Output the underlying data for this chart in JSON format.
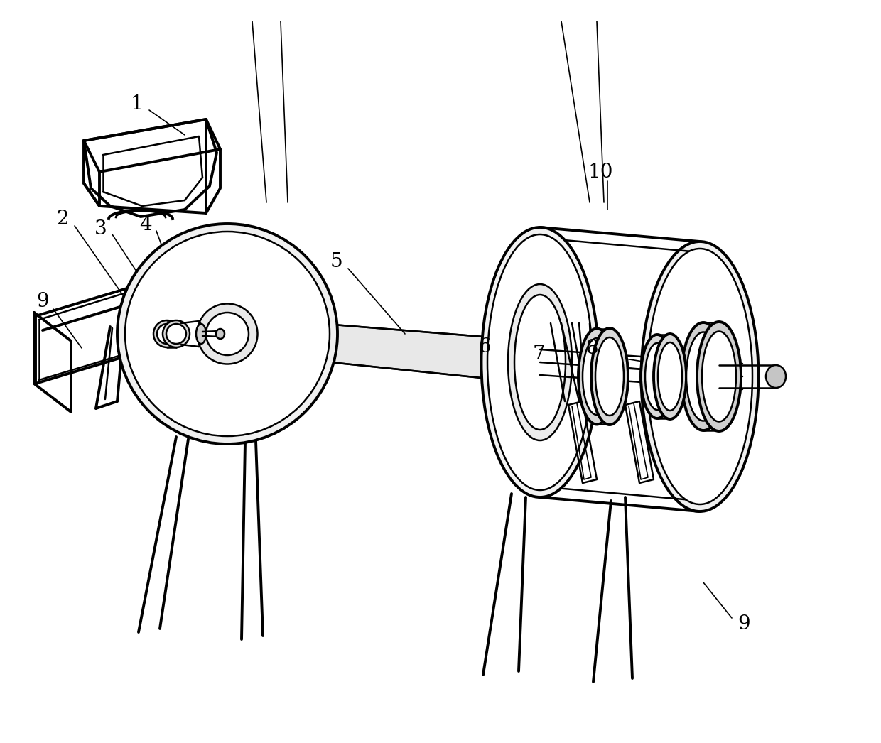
{
  "background_color": "#ffffff",
  "line_color": "#000000",
  "lw": 1.8,
  "lw_thick": 2.8,
  "lw_thin": 1.2,
  "label_fontsize": 20,
  "figsize": [
    12.4,
    10.46
  ],
  "dpi": 100
}
